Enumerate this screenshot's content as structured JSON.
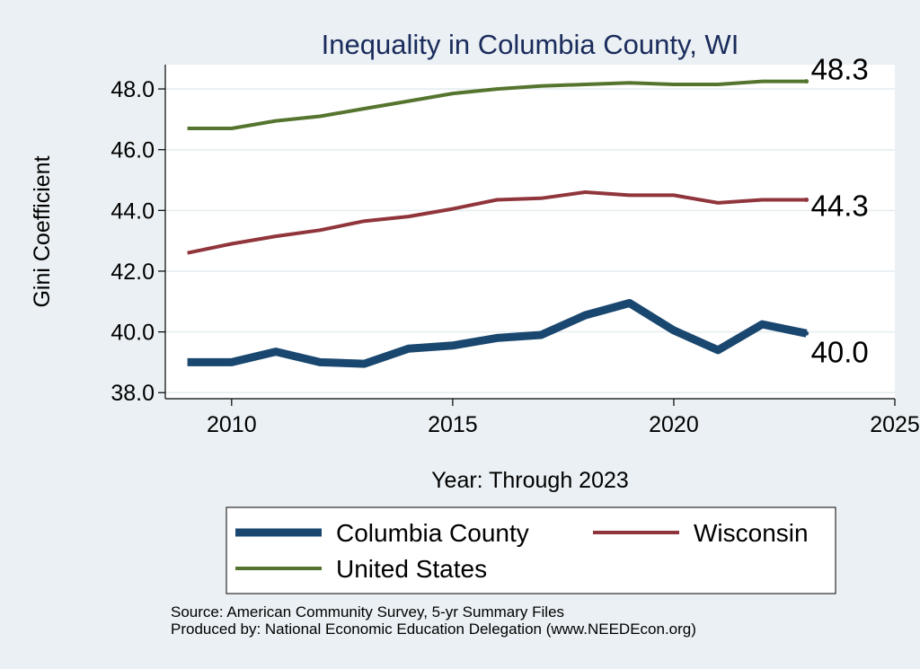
{
  "chart_data": {
    "type": "line",
    "title": "Inequality in Columbia County, WI",
    "xlabel": "Year: Through 2023",
    "ylabel": "Gini Coefficient",
    "xlim": [
      2008.5,
      2025
    ],
    "ylim": [
      37.8,
      48.8
    ],
    "x_ticks": [
      "2010",
      "2015",
      "2020",
      "2025"
    ],
    "y_ticks": [
      "38.0",
      "40.0",
      "42.0",
      "44.0",
      "46.0",
      "48.0"
    ],
    "x": [
      2009,
      2010,
      2011,
      2012,
      2013,
      2014,
      2015,
      2016,
      2017,
      2018,
      2019,
      2020,
      2021,
      2022,
      2023
    ],
    "series": [
      {
        "name": "Columbia County",
        "color": "#1a476f",
        "end_label": "40.0",
        "values": [
          39.0,
          39.0,
          39.35,
          39.0,
          38.95,
          39.45,
          39.55,
          39.8,
          39.9,
          40.55,
          40.95,
          40.05,
          39.4,
          40.25,
          39.95
        ]
      },
      {
        "name": "Wisconsin",
        "color": "#90353b",
        "end_label": "44.3",
        "values": [
          42.6,
          42.9,
          43.15,
          43.35,
          43.65,
          43.8,
          44.05,
          44.35,
          44.4,
          44.6,
          44.5,
          44.5,
          44.25,
          44.35,
          44.35
        ]
      },
      {
        "name": "United States",
        "color": "#55752f",
        "end_label": "48.3",
        "values": [
          46.7,
          46.7,
          46.95,
          47.1,
          47.35,
          47.6,
          47.85,
          48.0,
          48.1,
          48.15,
          48.2,
          48.15,
          48.15,
          48.25,
          48.25
        ]
      }
    ],
    "legend": {
      "position": "bottom",
      "items": [
        "Columbia County",
        "Wisconsin",
        "United States"
      ]
    }
  },
  "footer": {
    "source": "Source: American Community Survey, 5-yr Summary Files",
    "produced_by": "Produced by: National Economic Education Delegation (www.NEEDEcon.org)"
  }
}
